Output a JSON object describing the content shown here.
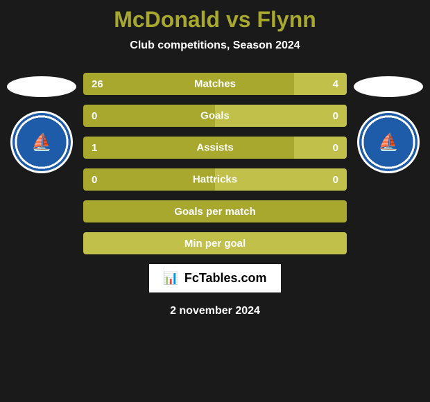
{
  "title": "McDonald vs Flynn",
  "subtitle": "Club competitions, Season 2024",
  "footer_logo": "FcTables.com",
  "footer_date": "2 november 2024",
  "colors": {
    "title_color": "#a8a82e",
    "text_color": "#ffffff",
    "bar_primary": "#a8a82e",
    "bar_secondary": "#c0c04a",
    "background": "#1a1a1a",
    "badge_bg": "#1e5ba8"
  },
  "clubs": {
    "left": "WATERFORD UNITED FOOTBALL CLUB",
    "right": "WATERFORD UNITED FOOTBALL CLUB"
  },
  "stats": [
    {
      "label": "Matches",
      "left_value": "26",
      "right_value": "4",
      "left_width": 80,
      "right_width": 20,
      "type": "split"
    },
    {
      "label": "Goals",
      "left_value": "0",
      "right_value": "0",
      "left_width": 50,
      "right_width": 50,
      "type": "split"
    },
    {
      "label": "Assists",
      "left_value": "1",
      "right_value": "0",
      "left_width": 80,
      "right_width": 20,
      "type": "split"
    },
    {
      "label": "Hattricks",
      "left_value": "0",
      "right_value": "0",
      "left_width": 50,
      "right_width": 50,
      "type": "split"
    },
    {
      "label": "Goals per match",
      "type": "full_primary"
    },
    {
      "label": "Min per goal",
      "type": "full_secondary"
    }
  ]
}
